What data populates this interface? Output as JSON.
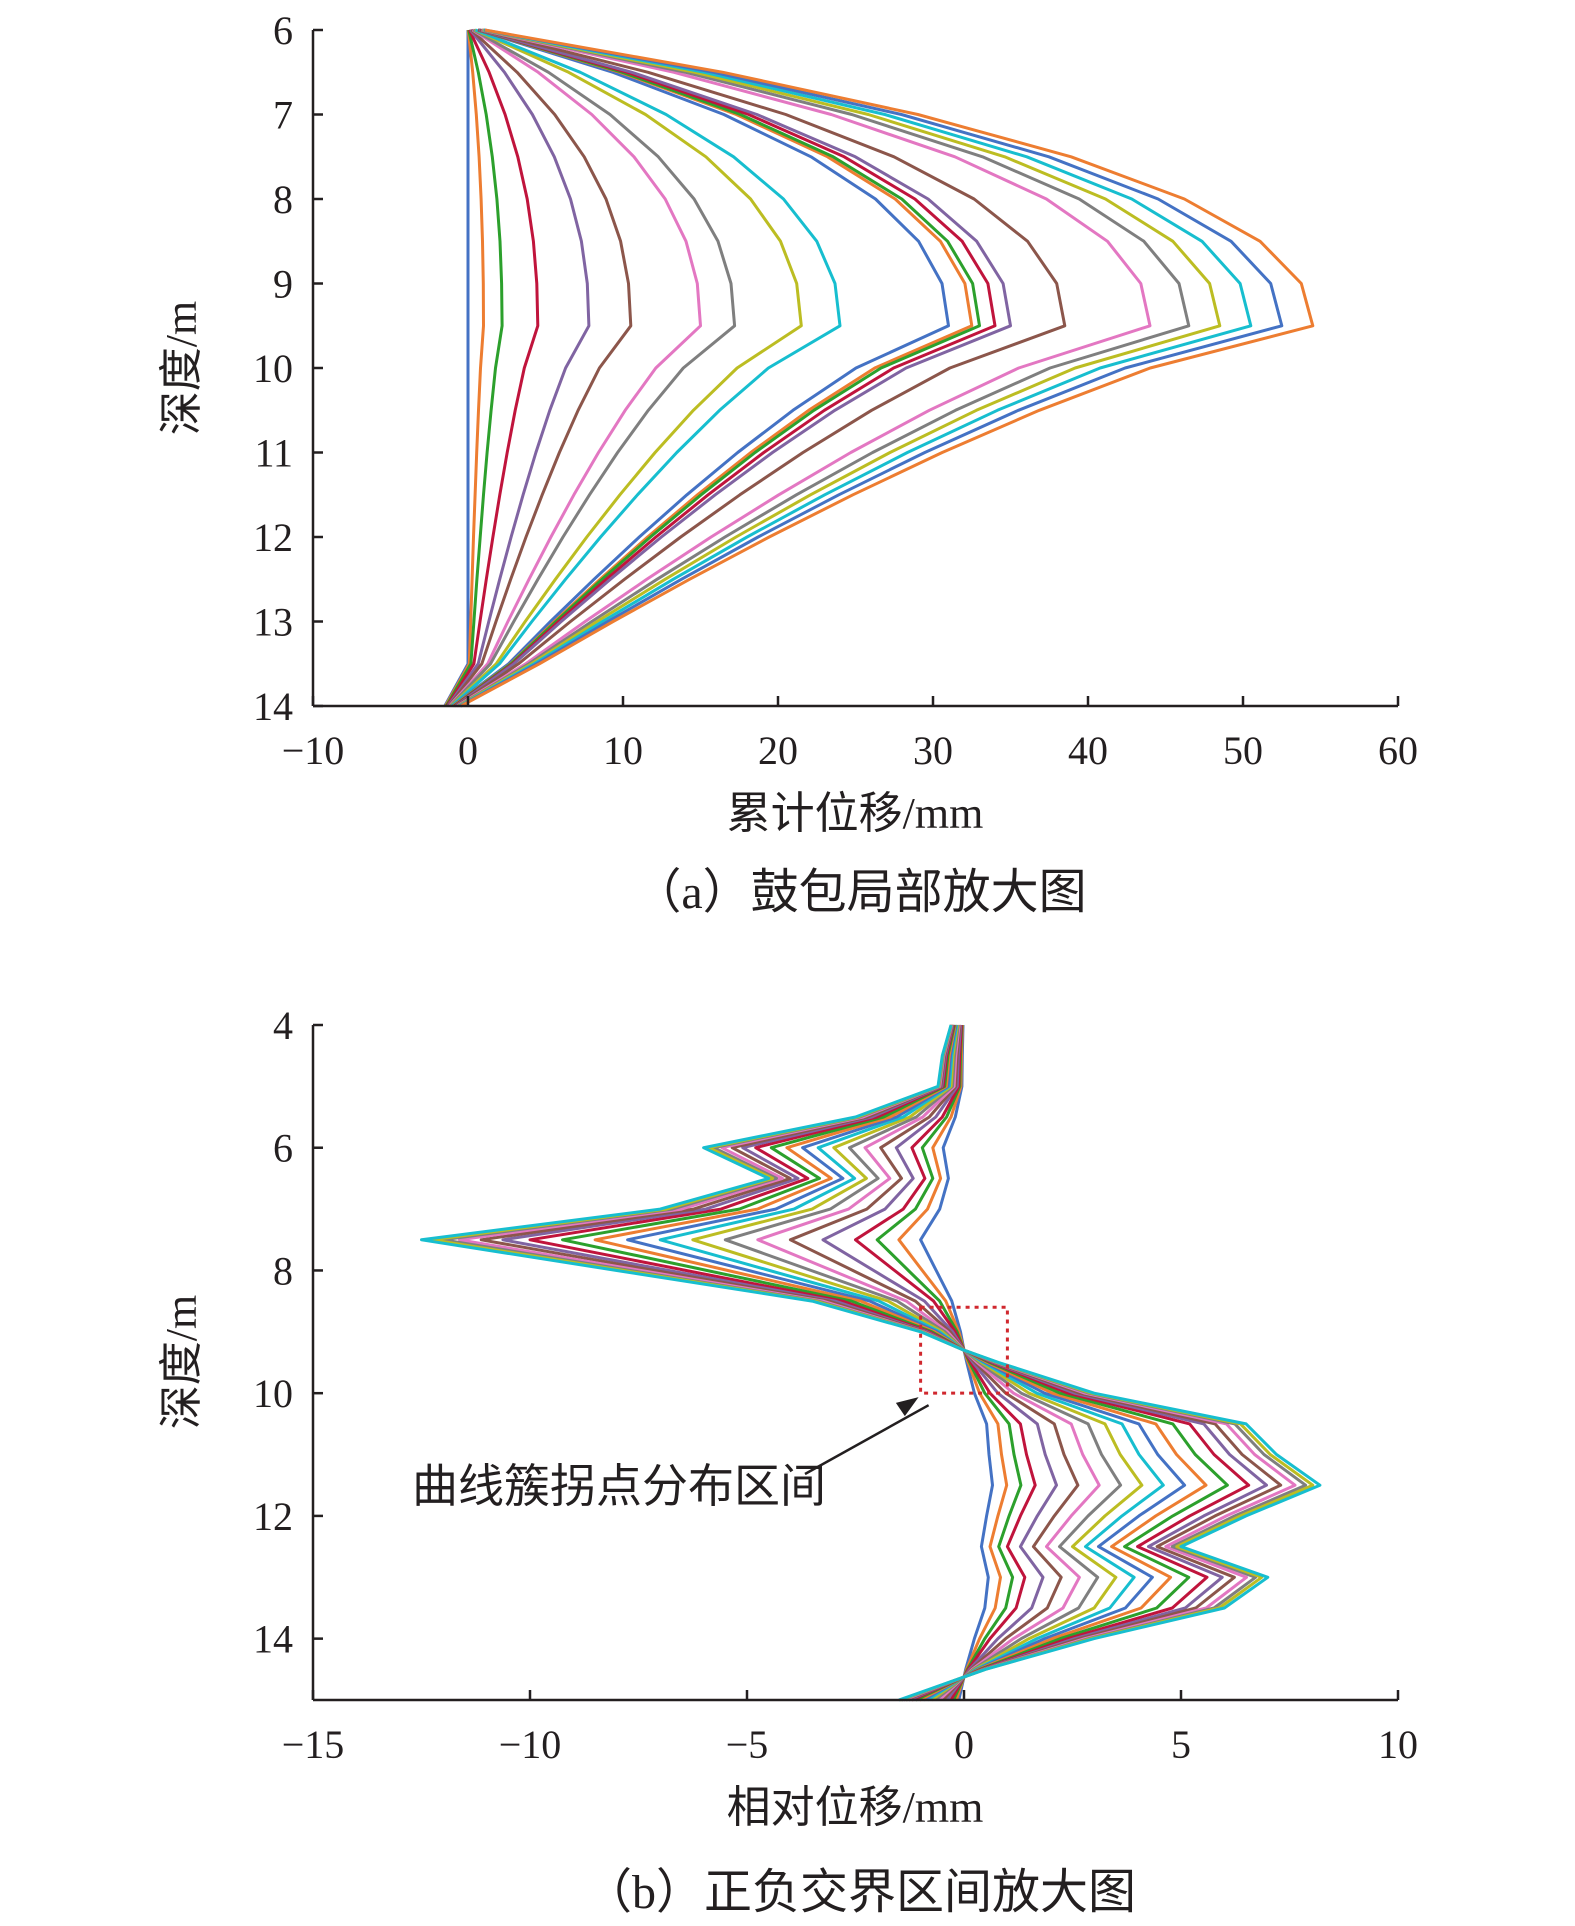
{
  "chart_data": [
    {
      "type": "line",
      "caption": "（a）鼓包局部放大图",
      "xlabel": "累计位移/mm",
      "ylabel": "深度/m",
      "xlim": [
        -10,
        60
      ],
      "ylim": [
        6,
        14
      ],
      "y_inverted": true,
      "xticks": [
        "−10",
        "0",
        "10",
        "20",
        "30",
        "40",
        "50",
        "60"
      ],
      "xtick_values": [
        -10,
        0,
        10,
        20,
        30,
        40,
        50,
        60
      ],
      "yticks": [
        "6",
        "7",
        "8",
        "9",
        "10",
        "11",
        "12",
        "13",
        "14"
      ],
      "ytick_values": [
        6,
        7,
        8,
        9,
        10,
        11,
        12,
        13,
        14
      ],
      "series_colors": [
        "#4472c4",
        "#ed7d31",
        "#2ca02c",
        "#c0143c",
        "#8064a2",
        "#8c564b",
        "#e377c2",
        "#7f7f7f",
        "#bcbd22",
        "#17becf"
      ],
      "depth": [
        6,
        6.5,
        7,
        7.5,
        8,
        8.5,
        9,
        9.5,
        10,
        10.5,
        11,
        11.5,
        12,
        12.5,
        13,
        13.5,
        14
      ],
      "series": [
        {
          "peak": 0.0
        },
        {
          "peak": 1.0
        },
        {
          "peak": 2.2
        },
        {
          "peak": 4.5
        },
        {
          "peak": 7.8
        },
        {
          "peak": 10.5
        },
        {
          "peak": 15.0
        },
        {
          "peak": 17.2
        },
        {
          "peak": 21.5
        },
        {
          "peak": 24.0
        },
        {
          "peak": 31.0
        },
        {
          "peak": 32.5
        },
        {
          "peak": 33.0
        },
        {
          "peak": 34.0
        },
        {
          "peak": 35.0
        },
        {
          "peak": 38.5
        },
        {
          "peak": 44.0
        },
        {
          "peak": 46.5
        },
        {
          "peak": 48.5
        },
        {
          "peak": 50.5
        },
        {
          "peak": 52.5
        },
        {
          "peak": 54.5
        }
      ]
    },
    {
      "type": "line",
      "caption": "（b）正负交界区间放大图",
      "xlabel": "相对位移/mm",
      "ylabel": "深度/m",
      "xlim": [
        -15,
        10
      ],
      "ylim": [
        4,
        15
      ],
      "y_inverted": true,
      "xticks": [
        "−15",
        "−10",
        "−5",
        "0",
        "5",
        "10"
      ],
      "xtick_values": [
        -15,
        -10,
        -5,
        0,
        5,
        10
      ],
      "yticks": [
        "4",
        "6",
        "8",
        "10",
        "12",
        "14"
      ],
      "ytick_values": [
        4,
        6,
        8,
        10,
        12,
        14
      ],
      "series_colors": [
        "#4472c4",
        "#ed7d31",
        "#2ca02c",
        "#c0143c",
        "#8064a2",
        "#8c564b",
        "#e377c2",
        "#7f7f7f",
        "#bcbd22",
        "#17becf"
      ],
      "annotation": {
        "text": "曲线簇拐点分布区间",
        "box_x": [
          -1,
          1
        ],
        "box_y": [
          8.6,
          10
        ]
      },
      "depth": [
        4,
        4.5,
        5,
        5.5,
        6,
        6.5,
        7,
        7.5,
        8,
        8.5,
        9,
        9.3,
        9.5,
        10,
        10.5,
        11,
        11.5,
        12,
        12.5,
        13,
        13.5,
        14,
        14.5,
        15
      ],
      "series": [
        {
          "scale": 0.08
        },
        {
          "scale": 0.12
        },
        {
          "scale": 0.16
        },
        {
          "scale": 0.2
        },
        {
          "scale": 0.26
        },
        {
          "scale": 0.32
        },
        {
          "scale": 0.38
        },
        {
          "scale": 0.44
        },
        {
          "scale": 0.5
        },
        {
          "scale": 0.56
        },
        {
          "scale": 0.62
        },
        {
          "scale": 0.68
        },
        {
          "scale": 0.74
        },
        {
          "scale": 0.8
        },
        {
          "scale": 0.85
        },
        {
          "scale": 0.89
        },
        {
          "scale": 0.93
        },
        {
          "scale": 0.96
        },
        {
          "scale": 0.98
        },
        {
          "scale": 1.0
        }
      ]
    }
  ]
}
